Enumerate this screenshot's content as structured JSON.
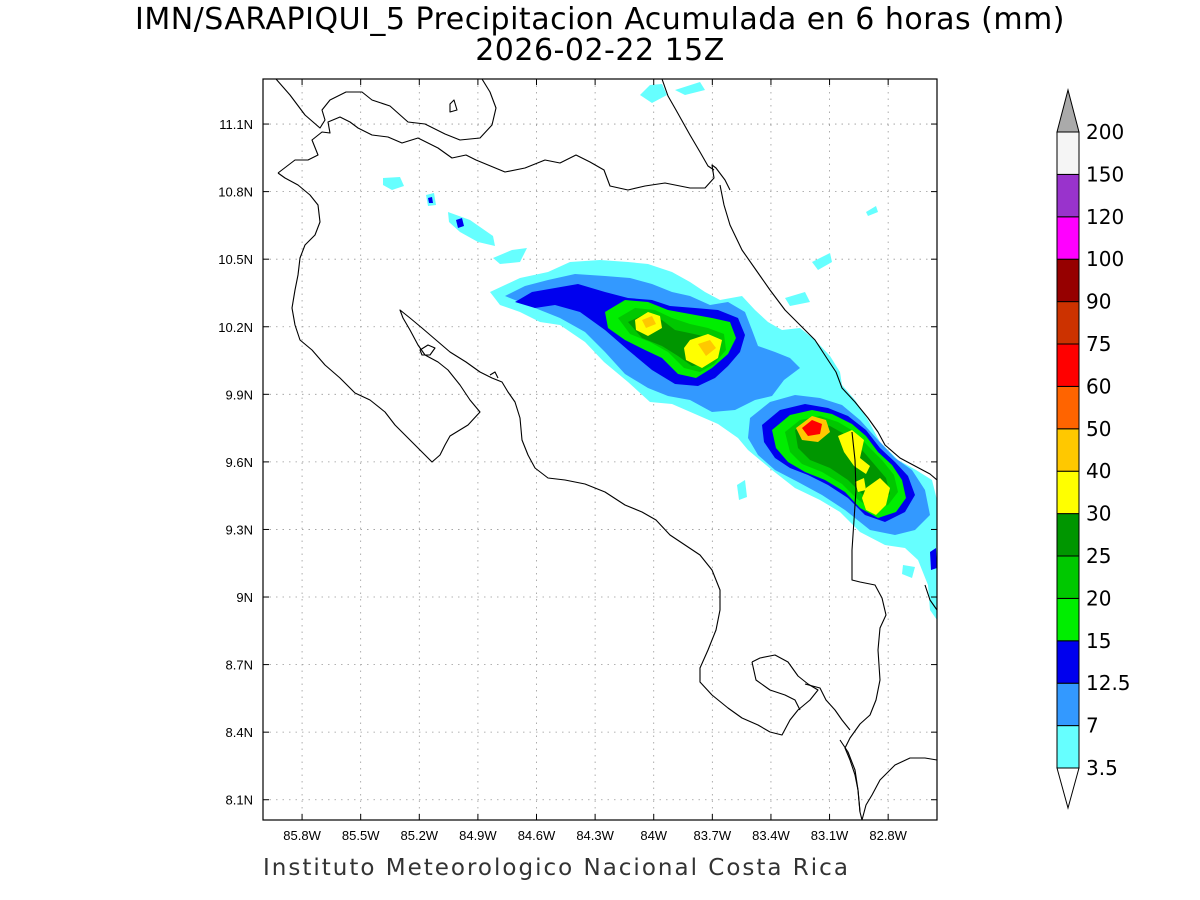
{
  "title_line1": "IMN/SARAPIQUI_5 Precipitacion Acumulada en 6 horas (mm)",
  "title_line2": "2026-02-22 15Z",
  "footer": "Instituto Meteorologico Nacional Costa Rica",
  "map": {
    "lon_range": [
      -86.0,
      -82.55
    ],
    "lat_range": [
      8.01,
      11.3
    ],
    "grid": true,
    "lon_ticks": [
      "85.8W",
      "85.5W",
      "85.2W",
      "84.9W",
      "84.6W",
      "84.3W",
      "84W",
      "83.7W",
      "83.4W",
      "83.1W",
      "82.8W"
    ],
    "lat_ticks": [
      "11.1N",
      "10.8N",
      "10.5N",
      "10.2N",
      "9.9N",
      "9.6N",
      "9.3N",
      "9N",
      "8.7N",
      "8.4N",
      "8.1N"
    ]
  },
  "colorbar": {
    "levels": [
      "3.5",
      "7",
      "12.5",
      "15",
      "20",
      "25",
      "30",
      "40",
      "50",
      "60",
      "75",
      "90",
      "100",
      "120",
      "150",
      "200"
    ],
    "colors": [
      "#66ffff",
      "#3399ff",
      "#0000ee",
      "#00ee00",
      "#00c800",
      "#009600",
      "#ffff00",
      "#ffc800",
      "#ff6400",
      "#ff0000",
      "#cc3200",
      "#960000",
      "#ff00ff",
      "#9933cc",
      "#f5f5f5",
      "#aaaaaa"
    ]
  },
  "precip_colors": {
    "c3": "#66ffff",
    "c7": "#3399ff",
    "c12": "#0000ee",
    "c15": "#00ee00",
    "c20": "#00c800",
    "c25": "#009600",
    "c30": "#ffff00",
    "c40": "#ffc800",
    "c60": "#ff0000"
  }
}
